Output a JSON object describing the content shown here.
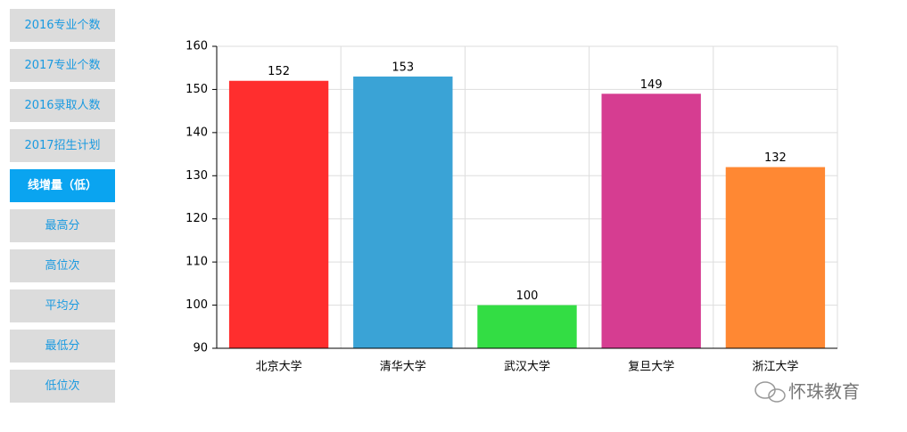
{
  "menu": {
    "items": [
      "2016专业个数",
      "2017专业个数",
      "2016录取人数",
      "2017招生计划",
      "线增量（低）",
      "最高分",
      "高位次",
      "平均分",
      "最低分",
      "低位次"
    ],
    "selected_index": 4
  },
  "chart_data": {
    "type": "bar",
    "categories": [
      "北京大学",
      "清华大学",
      "武汉大学",
      "复旦大学",
      "浙江大学"
    ],
    "values": [
      152,
      153,
      100,
      149,
      132
    ],
    "colors": [
      "#ff2e2e",
      "#3aa3d6",
      "#33dd44",
      "#d63d91",
      "#ff8833"
    ],
    "ylim": [
      90,
      160
    ],
    "yticks": [
      90,
      100,
      110,
      120,
      130,
      140,
      150,
      160
    ],
    "grid": true
  },
  "watermark": "怀珠教育"
}
